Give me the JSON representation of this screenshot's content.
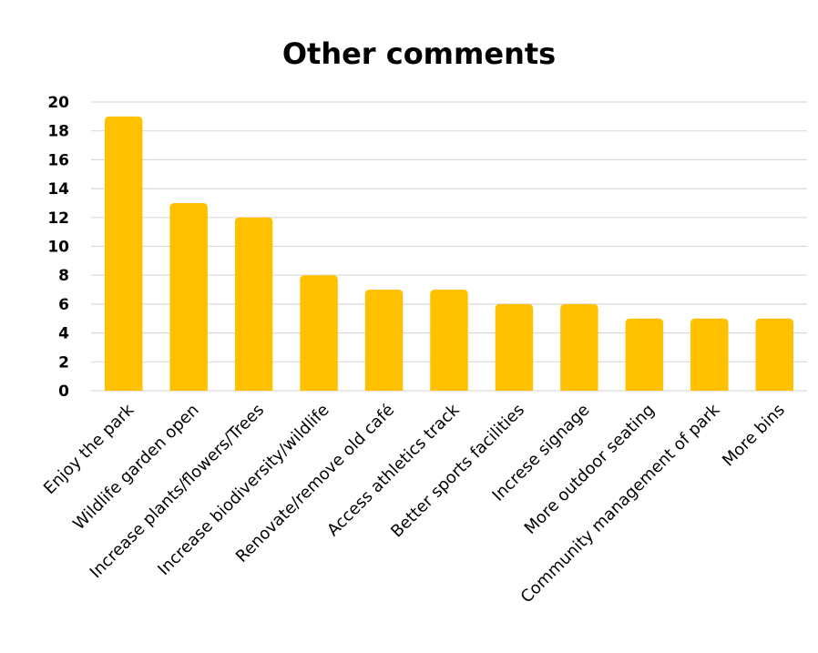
{
  "chart_data": {
    "type": "bar",
    "title": "Other comments",
    "xlabel": "",
    "ylabel": "",
    "categories": [
      "Enjoy the park",
      "Wildlife garden open",
      "Increase plants/flowers/Trees",
      "Increase biodiversity/wildlife",
      "Renovate/remove old café",
      "Access athletics track",
      "Better sports facilities",
      "Increse signage",
      "More outdoor seating",
      "Community management of park",
      "More bins"
    ],
    "values": [
      19,
      13,
      12,
      8,
      7,
      7,
      6,
      6,
      5,
      5,
      5
    ],
    "ylim": [
      0,
      20
    ],
    "yticks": [
      0,
      2,
      4,
      6,
      8,
      10,
      12,
      14,
      16,
      18,
      20
    ],
    "grid": true,
    "legend": "none",
    "colors": {
      "bar": "#FFC000",
      "grid": "#D9D9D9",
      "text": "#000000"
    }
  }
}
